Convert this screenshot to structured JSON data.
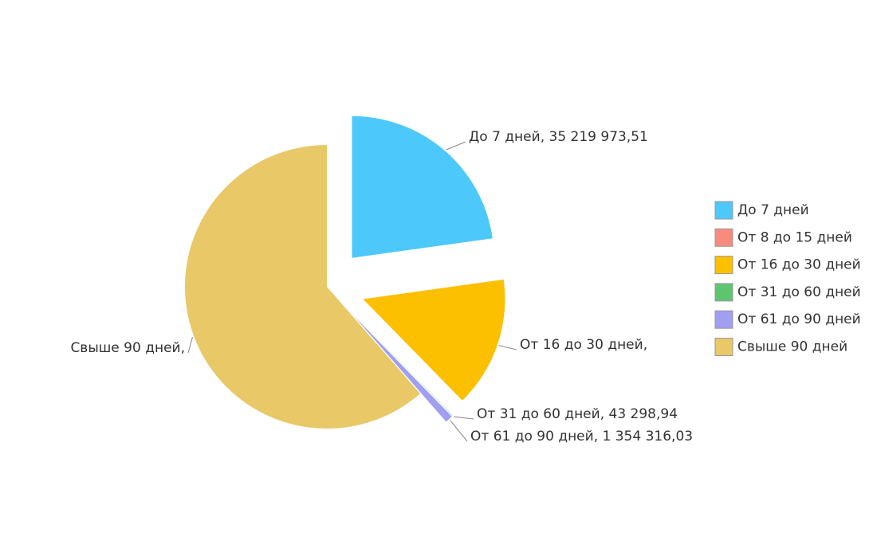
{
  "chart_data": {
    "type": "pie",
    "categories": [
      "До 7 дней",
      "От 8 до 15 дней",
      "От 16 до 30 дней",
      "От 31 до 60 дней",
      "От 61 до 90 дней",
      "Свыше 90 дней"
    ],
    "values": [
      35219973.51,
      0,
      23000000,
      43298.94,
      1354316.03,
      94900000
    ],
    "value_labels": [
      "35 219 973,51",
      null,
      null,
      "43 298,94",
      "1 354 316,03",
      null
    ],
    "label_separator": ", ",
    "colors": [
      "#4dc8fb",
      "#f98b7d",
      "#fcc000",
      "#5ec46e",
      "#a09ff1",
      "#e8c867"
    ],
    "legend": "right"
  }
}
